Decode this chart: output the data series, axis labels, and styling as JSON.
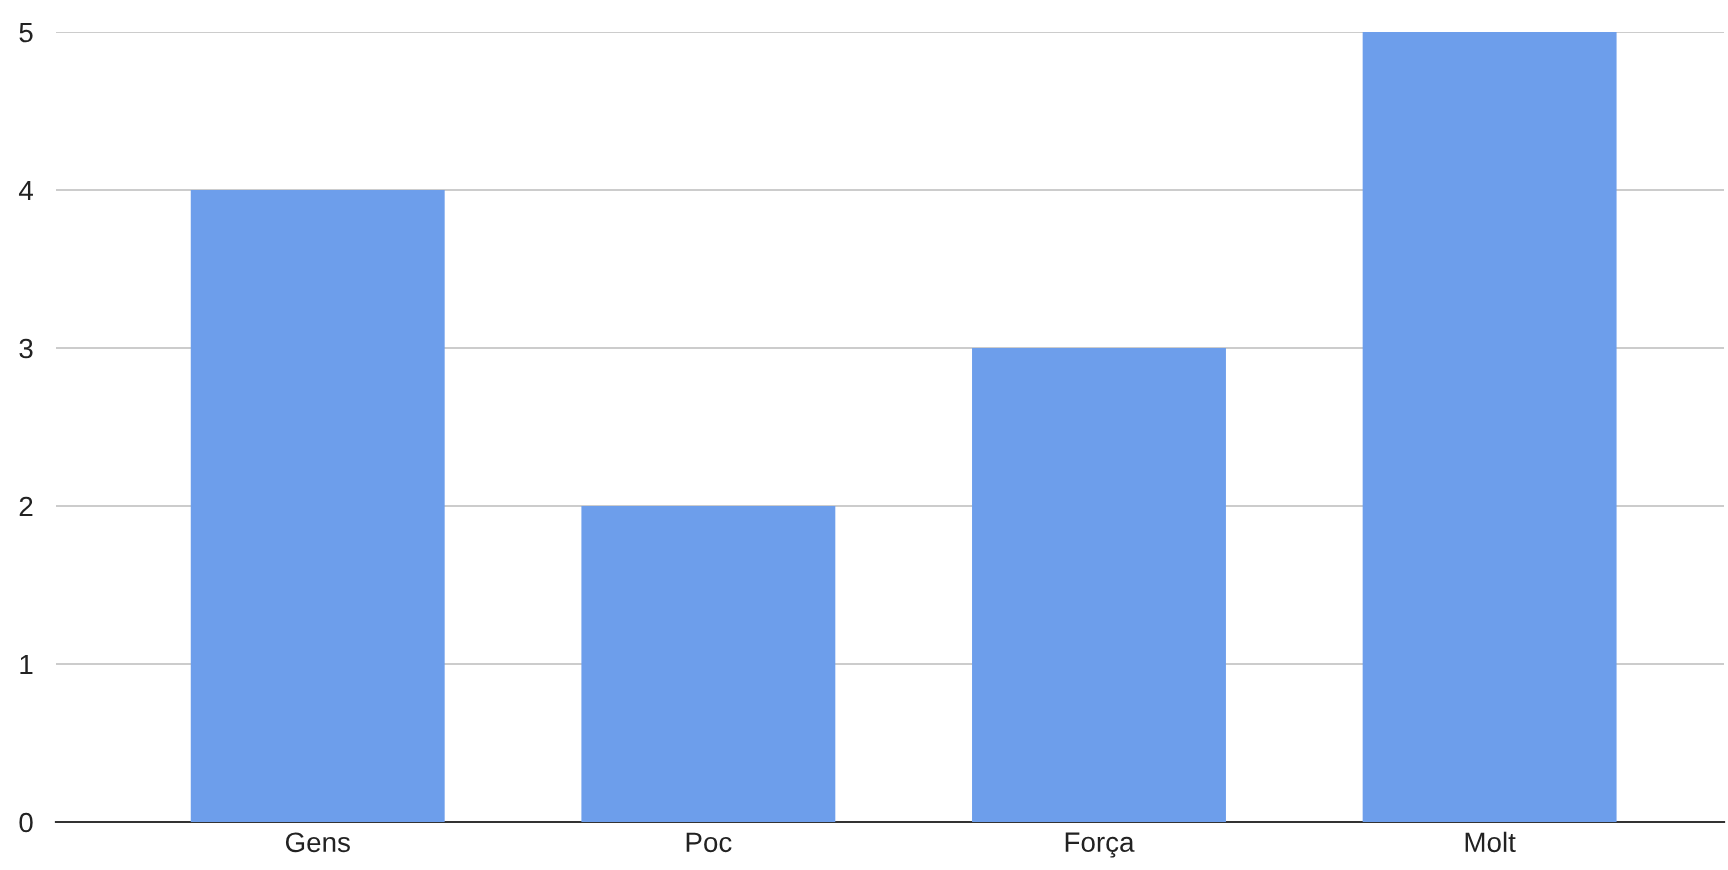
{
  "chart_data": {
    "type": "bar",
    "categories": [
      "Gens",
      "Poc",
      "Força",
      "Molt"
    ],
    "values": [
      4,
      2,
      3,
      5
    ],
    "color": "#6d9eeb",
    "ylim": [
      0,
      5
    ],
    "yticks": [
      0,
      1,
      2,
      3,
      4,
      5
    ],
    "grid": "y"
  }
}
